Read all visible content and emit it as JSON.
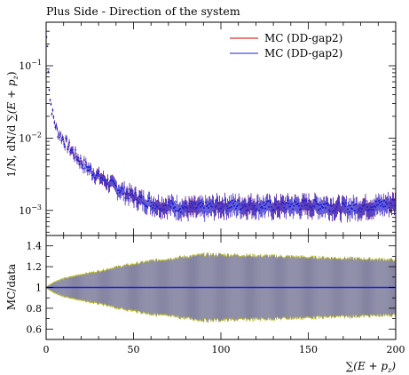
{
  "chart_data": [
    {
      "type": "scatter",
      "title": "Plus Side - Direction of the system",
      "xlabel": "",
      "ylabel": "1/N, dN/d ∑(E + p_z)",
      "ylabel_parts": [
        "1/N, dN/d ",
        "∑(E + p",
        "z",
        ")"
      ],
      "xlim": [
        0,
        200
      ],
      "ylim": [
        0.00045,
        0.4
      ],
      "yscale": "log",
      "y_ticks": [
        {
          "value": 0.1,
          "base": "10",
          "exp": "−1"
        },
        {
          "value": 0.01,
          "base": "10",
          "exp": "−2"
        },
        {
          "value": 0.001,
          "base": "10",
          "exp": "−3"
        }
      ],
      "legend": {
        "placement": "top-right",
        "entries": [
          {
            "label": "MC (DD-gap2)",
            "color": "#d00000"
          },
          {
            "label": "MC (DD-gap2)",
            "color": "#2020d0"
          }
        ]
      },
      "series": [
        {
          "name": "MC (DD-gap2)",
          "color": "#2020d0",
          "x": [
            0.5,
            2,
            4,
            6,
            8,
            10,
            12,
            15,
            20,
            25,
            30,
            35,
            40,
            45,
            50,
            55,
            60,
            65,
            70,
            75,
            80,
            85,
            90,
            95,
            100,
            110,
            120,
            130,
            140,
            150,
            160,
            170,
            180,
            190,
            199
          ],
          "y": [
            0.25,
            0.037,
            0.02,
            0.013,
            0.011,
            0.0095,
            0.0082,
            0.0066,
            0.0047,
            0.0037,
            0.003,
            0.0025,
            0.0021,
            0.0018,
            0.0016,
            0.0014,
            0.0013,
            0.0012,
            0.0012,
            0.00115,
            0.0011,
            0.0011,
            0.0011,
            0.00115,
            0.0012,
            0.0012,
            0.0012,
            0.00115,
            0.0012,
            0.0012,
            0.0012,
            0.0011,
            0.00115,
            0.0012,
            0.0013
          ],
          "yerr_rel": [
            0.02,
            0.05,
            0.07,
            0.09,
            0.1,
            0.11,
            0.12,
            0.13,
            0.14,
            0.16,
            0.17,
            0.18,
            0.2,
            0.21,
            0.22,
            0.23,
            0.24,
            0.25,
            0.25,
            0.26,
            0.26,
            0.27,
            0.27,
            0.27,
            0.27,
            0.27,
            0.27,
            0.27,
            0.27,
            0.27,
            0.27,
            0.27,
            0.27,
            0.27,
            0.27
          ]
        }
      ]
    },
    {
      "type": "line",
      "xlabel": "∑(E + p_z)",
      "xlabel_parts": [
        "∑(E + p",
        "z",
        ")"
      ],
      "ylabel": "MC/data",
      "xlim": [
        0,
        200
      ],
      "ylim": [
        0.5,
        1.5
      ],
      "x_ticks": [
        0,
        50,
        100,
        150,
        200
      ],
      "y_ticks": [
        0.6,
        0.8,
        1,
        1.2,
        1.4
      ],
      "ratio_value": 1.0,
      "band_halfwidth_x": [
        0,
        5,
        10,
        20,
        30,
        40,
        50,
        60,
        70,
        80,
        90,
        100,
        120,
        140,
        160,
        180,
        200
      ],
      "band_halfwidth": [
        0.01,
        0.06,
        0.09,
        0.13,
        0.16,
        0.2,
        0.23,
        0.26,
        0.28,
        0.3,
        0.32,
        0.32,
        0.31,
        0.3,
        0.29,
        0.28,
        0.27
      ],
      "colors": {
        "band": "#7a7a9a",
        "band_edge": "#c8c800",
        "line": "#2020d0"
      }
    }
  ]
}
